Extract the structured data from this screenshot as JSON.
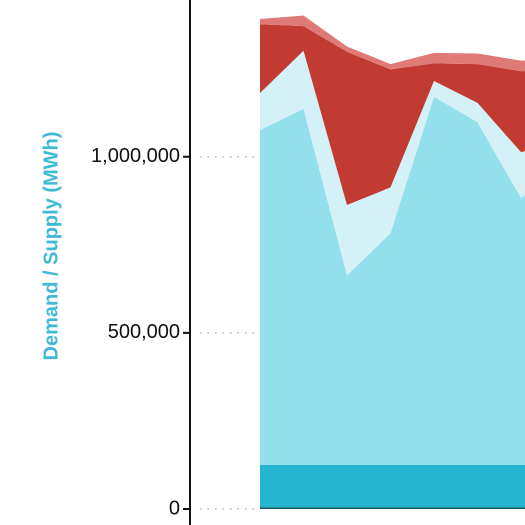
{
  "chart_data": {
    "type": "area",
    "stacked": true,
    "title": "",
    "xlabel": "",
    "ylabel": "Demand / Supply (MWh)",
    "ylim": [
      0,
      1445000
    ],
    "grid": false,
    "legend": "none",
    "y_ticks": [
      {
        "value": 0,
        "label": "0"
      },
      {
        "value": 500000,
        "label": "500,000"
      },
      {
        "value": 1000000,
        "label": "1,000,000"
      }
    ],
    "x": [
      0,
      1,
      2,
      3,
      4,
      5,
      6,
      7,
      8
    ],
    "series": [
      {
        "color": "#0e5a6a",
        "values": [
          5000,
          5000,
          5000,
          5000,
          5000,
          5000,
          5000,
          5000,
          5000
        ]
      },
      {
        "color": "#26b6d2",
        "values": [
          120000,
          120000,
          120000,
          120000,
          120000,
          120000,
          120000,
          120000,
          120000
        ]
      },
      {
        "color": "#94dfec",
        "values": [
          951000,
          1011000,
          538000,
          658000,
          1045000,
          973000,
          758000,
          840000,
          890000
        ]
      },
      {
        "color": "#d3f1f7",
        "values": [
          105000,
          165000,
          200000,
          130000,
          45000,
          55000,
          130000,
          80000,
          60000
        ]
      },
      {
        "color": "#c23b33",
        "values": [
          195000,
          70000,
          435000,
          335000,
          50000,
          110000,
          230000,
          200000,
          180000
        ]
      },
      {
        "color": "#e07a76",
        "values": [
          15000,
          30000,
          15000,
          15000,
          30000,
          30000,
          30000,
          30000,
          30000
        ]
      }
    ],
    "colors": {
      "ylabel": "#3fb9d5",
      "axis": "#111111",
      "gridline_dots": "#b8b8b8"
    }
  }
}
